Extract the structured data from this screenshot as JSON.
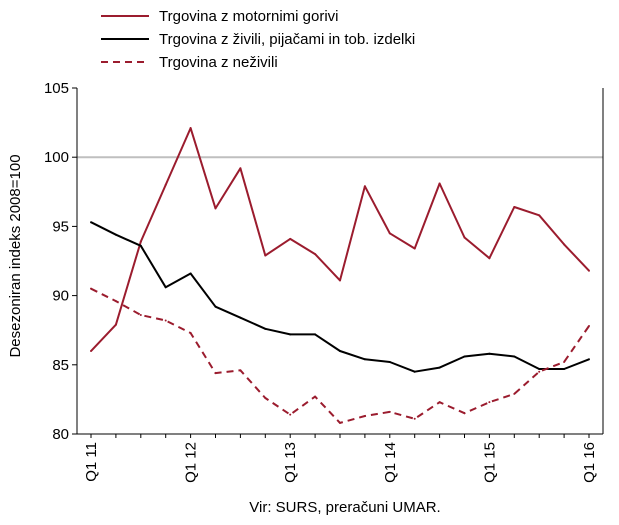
{
  "chart_data": {
    "type": "line",
    "ylabel": "Desezoniran indeks 2008=100",
    "ylim": [
      80,
      105
    ],
    "yticks": [
      80,
      85,
      90,
      95,
      100,
      105
    ],
    "reference_line": 100,
    "x": [
      "Q1 11",
      "Q2 11",
      "Q3 11",
      "Q4 11",
      "Q1 12",
      "Q2 12",
      "Q3 12",
      "Q4 12",
      "Q1 13",
      "Q2 13",
      "Q3 13",
      "Q4 13",
      "Q1 14",
      "Q2 14",
      "Q3 14",
      "Q4 14",
      "Q1 15",
      "Q2 15",
      "Q3 15",
      "Q4 15",
      "Q1 16"
    ],
    "xtick_labels": [
      "Q1 11",
      "Q1 12",
      "Q1 13",
      "Q1 14",
      "Q1 15",
      "Q1 16"
    ],
    "legend_position": "top",
    "series": [
      {
        "name": "Trgovina z motornimi gorivi",
        "color": "#9b1c2e",
        "dash": "solid",
        "values": [
          86.0,
          87.9,
          93.9,
          98.0,
          102.1,
          96.3,
          99.2,
          92.9,
          94.1,
          93.0,
          91.1,
          97.9,
          94.5,
          93.4,
          98.1,
          94.2,
          92.7,
          96.4,
          95.8,
          93.7,
          91.8
        ]
      },
      {
        "name": "Trgovina z živili, pijačami in tob. izdelki",
        "color": "#000000",
        "dash": "solid",
        "values": [
          95.3,
          94.4,
          93.6,
          90.6,
          91.6,
          89.2,
          88.4,
          87.6,
          87.2,
          87.2,
          86.0,
          85.4,
          85.2,
          84.5,
          84.8,
          85.6,
          85.8,
          85.6,
          84.7,
          84.7,
          85.4
        ]
      },
      {
        "name": "Trgovina z neživili",
        "color": "#9b1c2e",
        "dash": "dashed",
        "values": [
          90.5,
          89.6,
          88.6,
          88.2,
          87.3,
          84.4,
          84.6,
          82.6,
          81.4,
          82.7,
          80.8,
          81.3,
          81.6,
          81.1,
          82.3,
          81.5,
          82.3,
          82.9,
          84.5,
          85.2,
          87.8
        ]
      }
    ]
  },
  "source_note": "Vir: SURS, preračuni UMAR."
}
